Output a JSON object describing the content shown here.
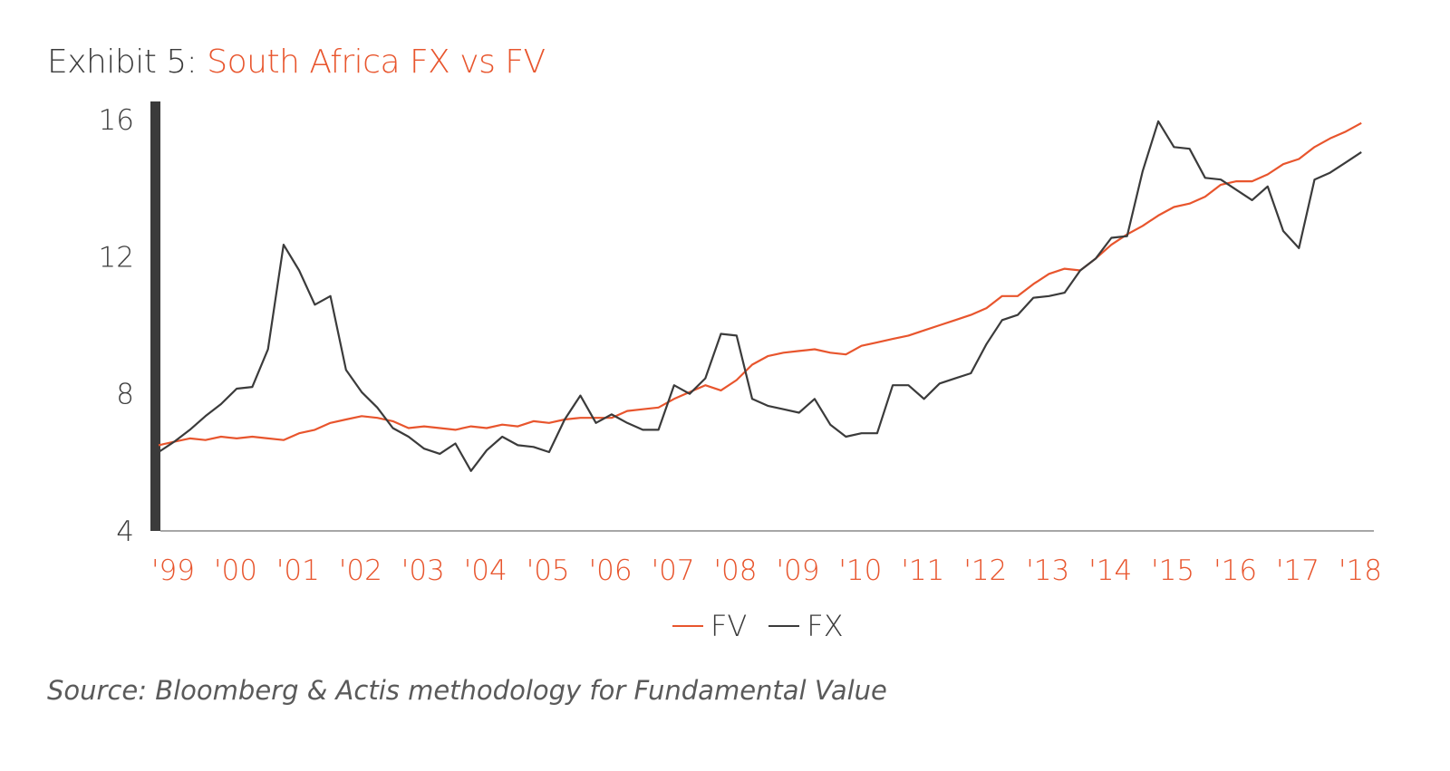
{
  "title": {
    "prefix": "Exhibit 5:",
    "main": "South Africa FX vs FV"
  },
  "source": "Source: Bloomberg & Actis methodology for Fundamental Value",
  "colors": {
    "fv": "#e8552d",
    "fx": "#3b3b3b",
    "axis": "#3b3b3b"
  },
  "legend": {
    "fv_label": "FV",
    "fx_label": "FX"
  },
  "chart_data": {
    "type": "line",
    "title": "Exhibit 5: South Africa FX vs FV",
    "xlabel": "",
    "ylabel": "",
    "ylim": [
      4,
      16
    ],
    "yticks": [
      4,
      8,
      12,
      16
    ],
    "ytick_labels": [
      "4",
      "8",
      "12",
      "16"
    ],
    "xlim": [
      1999.0,
      2018.45
    ],
    "xticks": [
      1999,
      2000,
      2001,
      2002,
      2003,
      2004,
      2005,
      2006,
      2007,
      2008,
      2009,
      2010,
      2011,
      2012,
      2013,
      2014,
      2015,
      2016,
      2017,
      2018
    ],
    "xtick_labels": [
      "'99",
      "'00",
      "'01",
      "'02",
      "'03",
      "'04",
      "'05",
      "'06",
      "'07",
      "'08",
      "'09",
      "'10",
      "'11",
      "'12",
      "'13",
      "'14",
      "'15",
      "'16",
      "'17",
      "'18"
    ],
    "grid": false,
    "legend_position": "bottom-center",
    "series": [
      {
        "name": "FV",
        "x": [
          1999.0,
          1999.25,
          1999.5,
          1999.75,
          2000.0,
          2000.25,
          2000.5,
          2000.75,
          2001.0,
          2001.25,
          2001.5,
          2001.75,
          2002.0,
          2002.25,
          2002.5,
          2002.75,
          2003.0,
          2003.25,
          2003.5,
          2003.75,
          2004.0,
          2004.25,
          2004.5,
          2004.75,
          2005.0,
          2005.25,
          2005.5,
          2005.75,
          2006.0,
          2006.25,
          2006.5,
          2006.75,
          2007.0,
          2007.25,
          2007.5,
          2007.75,
          2008.0,
          2008.25,
          2008.5,
          2008.75,
          2009.0,
          2009.25,
          2009.5,
          2009.75,
          2010.0,
          2010.25,
          2010.5,
          2010.75,
          2011.0,
          2011.25,
          2011.5,
          2011.75,
          2012.0,
          2012.25,
          2012.5,
          2012.75,
          2013.0,
          2013.25,
          2013.5,
          2013.75,
          2014.0,
          2014.25,
          2014.5,
          2014.75,
          2015.0,
          2015.25,
          2015.5,
          2015.75,
          2016.0,
          2016.25,
          2016.5,
          2016.75,
          2017.0,
          2017.25,
          2017.5,
          2017.75,
          2018.0,
          2018.25
        ],
        "values": [
          6.5,
          6.6,
          6.7,
          6.65,
          6.75,
          6.7,
          6.75,
          6.7,
          6.65,
          6.85,
          6.95,
          7.15,
          7.25,
          7.35,
          7.3,
          7.2,
          7.0,
          7.05,
          7.0,
          6.95,
          7.05,
          7.0,
          7.1,
          7.05,
          7.2,
          7.15,
          7.25,
          7.3,
          7.3,
          7.3,
          7.5,
          7.55,
          7.6,
          7.85,
          8.05,
          8.25,
          8.1,
          8.4,
          8.85,
          9.1,
          9.2,
          9.25,
          9.3,
          9.2,
          9.15,
          9.4,
          9.5,
          9.6,
          9.7,
          9.85,
          10.0,
          10.15,
          10.3,
          10.5,
          10.85,
          10.85,
          11.2,
          11.5,
          11.65,
          11.6,
          11.95,
          12.35,
          12.65,
          12.9,
          13.2,
          13.45,
          13.55,
          13.75,
          14.1,
          14.2,
          14.2,
          14.4,
          14.7,
          14.85,
          15.2,
          15.45,
          15.65,
          15.9
        ]
      },
      {
        "name": "FX",
        "x": [
          1999.0,
          1999.25,
          1999.5,
          1999.75,
          2000.0,
          2000.25,
          2000.5,
          2000.75,
          2001.0,
          2001.25,
          2001.5,
          2001.75,
          2002.0,
          2002.25,
          2002.5,
          2002.75,
          2003.0,
          2003.25,
          2003.5,
          2003.75,
          2004.0,
          2004.25,
          2004.5,
          2004.75,
          2005.0,
          2005.25,
          2005.5,
          2005.75,
          2006.0,
          2006.25,
          2006.5,
          2006.75,
          2007.0,
          2007.25,
          2007.5,
          2007.75,
          2008.0,
          2008.25,
          2008.5,
          2008.75,
          2009.0,
          2009.25,
          2009.5,
          2009.75,
          2010.0,
          2010.25,
          2010.5,
          2010.75,
          2011.0,
          2011.25,
          2011.5,
          2011.75,
          2012.0,
          2012.25,
          2012.5,
          2012.75,
          2013.0,
          2013.25,
          2013.5,
          2013.75,
          2014.0,
          2014.25,
          2014.5,
          2014.75,
          2015.0,
          2015.25,
          2015.5,
          2015.75,
          2016.0,
          2016.25,
          2016.5,
          2016.75,
          2017.0,
          2017.25,
          2017.5,
          2017.75,
          2018.0,
          2018.25
        ],
        "values": [
          6.3,
          6.6,
          6.95,
          7.35,
          7.7,
          8.15,
          8.2,
          9.3,
          12.35,
          11.6,
          10.6,
          10.85,
          8.7,
          8.05,
          7.6,
          7.0,
          6.75,
          6.4,
          6.25,
          6.55,
          5.75,
          6.35,
          6.75,
          6.5,
          6.45,
          6.3,
          7.25,
          7.95,
          7.15,
          7.4,
          7.15,
          6.95,
          6.95,
          8.25,
          8.0,
          8.45,
          9.75,
          9.7,
          7.85,
          7.65,
          7.55,
          7.45,
          7.85,
          7.1,
          6.75,
          6.85,
          6.85,
          8.25,
          8.25,
          7.85,
          8.3,
          8.45,
          8.6,
          9.45,
          10.15,
          10.3,
          10.8,
          10.85,
          10.95,
          11.6,
          11.95,
          12.55,
          12.6,
          14.5,
          15.95,
          15.2,
          15.15,
          14.3,
          14.25,
          13.95,
          13.65,
          14.05,
          12.75,
          12.25,
          14.25,
          14.45,
          14.75,
          15.05
        ]
      }
    ]
  }
}
